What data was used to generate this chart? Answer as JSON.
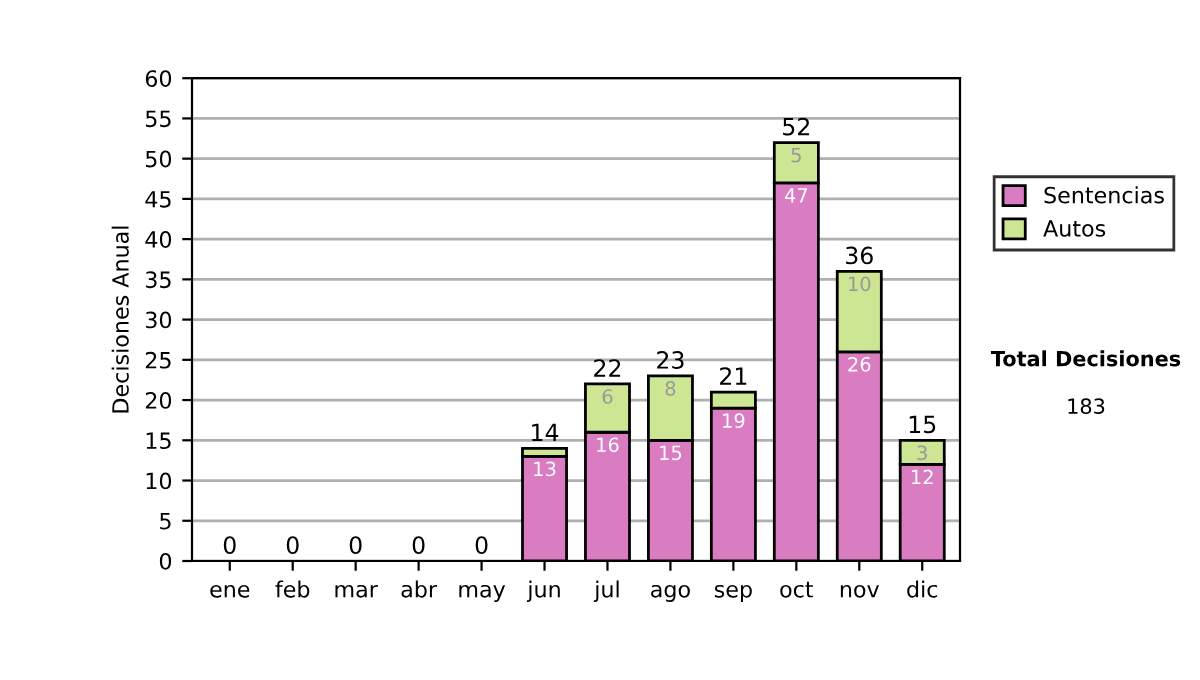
{
  "chart_data": {
    "type": "bar",
    "stacked": true,
    "ylabel": "Decisiones Anual",
    "categories": [
      "ene",
      "feb",
      "mar",
      "abr",
      "may",
      "jun",
      "jul",
      "ago",
      "sep",
      "oct",
      "nov",
      "dic"
    ],
    "series": [
      {
        "name": "Sentencias",
        "color": "#d97cc2",
        "values": [
          0,
          0,
          0,
          0,
          0,
          13,
          16,
          15,
          19,
          47,
          26,
          12
        ],
        "value_labels": [
          null,
          null,
          null,
          null,
          null,
          "13",
          "16",
          "15",
          "19",
          "47",
          "26",
          "12"
        ]
      },
      {
        "name": "Autos",
        "color": "#cde693",
        "values": [
          0,
          0,
          0,
          0,
          0,
          1,
          6,
          8,
          2,
          5,
          10,
          3
        ],
        "value_labels": [
          null,
          null,
          null,
          null,
          null,
          null,
          "6",
          "8",
          null,
          "5",
          "10",
          "3"
        ]
      }
    ],
    "totals": [
      "0",
      "0",
      "0",
      "0",
      "0",
      "14",
      "22",
      "23",
      "21",
      "52",
      "36",
      "15"
    ],
    "ylim": [
      0,
      60
    ],
    "yticks": [
      0,
      5,
      10,
      15,
      20,
      25,
      30,
      35,
      40,
      45,
      50,
      55,
      60
    ],
    "grid": "y",
    "legend": "right",
    "annotations": [
      "Total Decisiones",
      "183"
    ]
  }
}
